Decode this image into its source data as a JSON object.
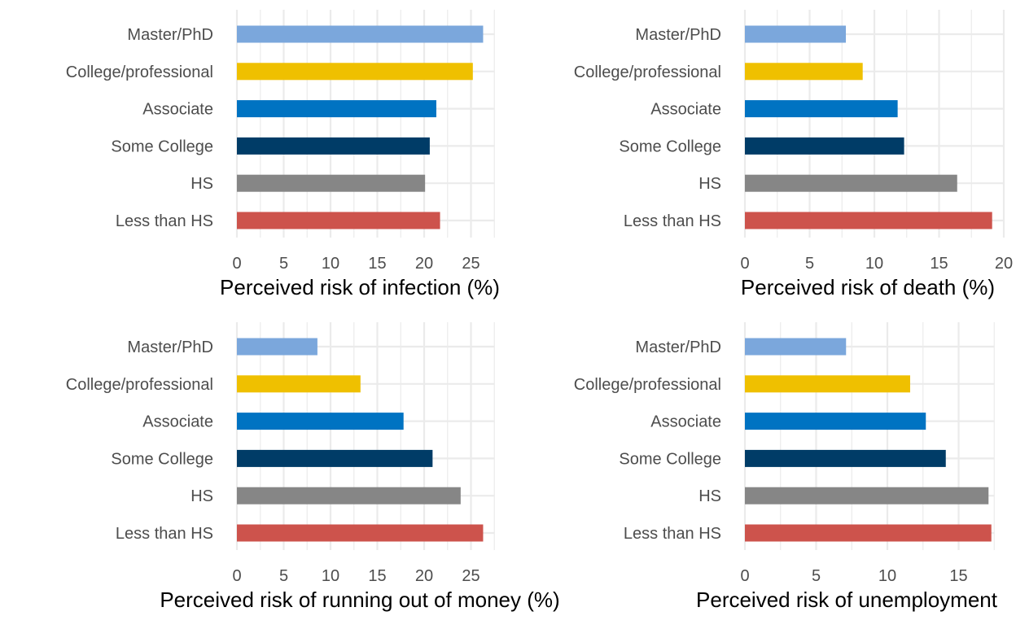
{
  "chart_data": [
    {
      "type": "bar",
      "orientation": "horizontal",
      "categories": [
        "Master/PhD",
        "College/professional",
        "Associate",
        "Some College",
        "HS",
        "Less than HS"
      ],
      "values": [
        26.3,
        25.2,
        21.3,
        20.6,
        20.1,
        21.7
      ],
      "xlabel": "Perceived risk of infection (%)",
      "ylabel": "",
      "xlim": [
        0,
        27.5
      ],
      "xticks": [
        0,
        5,
        10,
        15,
        20,
        25
      ],
      "grid": true
    },
    {
      "type": "bar",
      "orientation": "horizontal",
      "categories": [
        "Master/PhD",
        "College/professional",
        "Associate",
        "Some College",
        "HS",
        "Less than HS"
      ],
      "values": [
        7.8,
        9.1,
        11.8,
        12.3,
        16.4,
        19.1
      ],
      "xlabel": "Perceived risk of death (%)",
      "ylabel": "",
      "xlim": [
        0,
        20
      ],
      "xticks": [
        0,
        5,
        10,
        15,
        20
      ],
      "grid": true
    },
    {
      "type": "bar",
      "orientation": "horizontal",
      "categories": [
        "Master/PhD",
        "College/professional",
        "Associate",
        "Some College",
        "HS",
        "Less than HS"
      ],
      "values": [
        8.6,
        13.2,
        17.8,
        20.9,
        23.9,
        26.3
      ],
      "xlabel": "Perceived risk of running out of money (%)",
      "ylabel": "",
      "xlim": [
        0,
        27.5
      ],
      "xticks": [
        0,
        5,
        10,
        15,
        20,
        25
      ],
      "grid": true
    },
    {
      "type": "bar",
      "orientation": "horizontal",
      "categories": [
        "Master/PhD",
        "College/professional",
        "Associate",
        "Some College",
        "HS",
        "Less than HS"
      ],
      "values": [
        7.1,
        11.6,
        12.7,
        14.1,
        17.1,
        17.3
      ],
      "xlabel": "Perceived risk of unemployment",
      "ylabel": "",
      "xlim": [
        0,
        17.5
      ],
      "xticks": [
        0,
        5,
        10,
        15
      ],
      "grid": true
    }
  ],
  "colors": {
    "Master/PhD": "#7ba7dc",
    "College/professional": "#efc000",
    "Associate": "#0073c2",
    "Some College": "#003c67",
    "HS": "#868686",
    "Less than HS": "#cd534c",
    "grid": "#ebebeb"
  }
}
